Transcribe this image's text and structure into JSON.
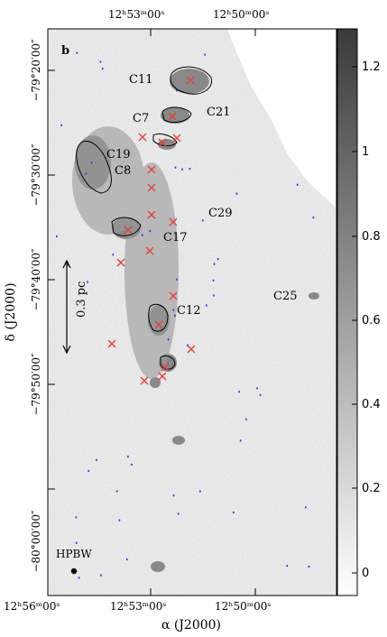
{
  "panel_label": "b",
  "top_ticks": [
    "12ʰ53ᵐ00ˢ",
    "12ʰ50ᵐ00ˢ"
  ],
  "bottom_ticks": [
    "12ʰ56ᵐ00ˢ",
    "12ʰ53ᵐ00ˢ",
    "12ʰ50ᵐ00ˢ"
  ],
  "left_ticks": [
    "−79°20′00″",
    "−79°30′00″",
    "−79°40′00″",
    "−79°50′00″",
    "−80°00′00″"
  ],
  "x_axis_label": "α (J2000)",
  "y_axis_label": "δ (J2000)",
  "scale_bar_label": "0.3 pc",
  "beam_label": "HPBW",
  "colorbar_ticks": [
    "1.2",
    "1",
    "0.8",
    "0.6",
    "0.4",
    "0.2",
    "0"
  ],
  "sources": [
    {
      "name": "C11"
    },
    {
      "name": "C21"
    },
    {
      "name": "C7"
    },
    {
      "name": "C19"
    },
    {
      "name": "C8"
    },
    {
      "name": "C29"
    },
    {
      "name": "C17"
    },
    {
      "name": "C25"
    },
    {
      "name": "C12"
    }
  ],
  "colors": {
    "marker": "#e8403a",
    "contour": "#000000",
    "noise": "#2a3ad8",
    "background": "#ececec"
  }
}
